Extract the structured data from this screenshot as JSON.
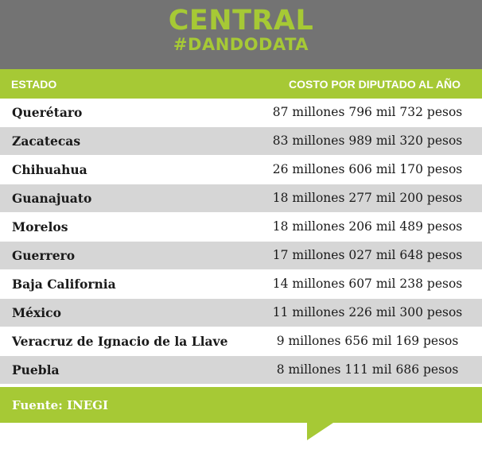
{
  "brand": {
    "line1": "CENTRAL",
    "line2": "#DANDODATA",
    "accent_color": "#a6c935",
    "header_bg": "#737373"
  },
  "table": {
    "headers": {
      "estado": "ESTADO",
      "costo": "COSTO POR DIPUTADO AL AÑO"
    },
    "rows": [
      {
        "estado": "Querétaro",
        "costo": "87 millones 796 mil 732 pesos"
      },
      {
        "estado": "Zacatecas",
        "costo": "83 millones 989 mil 320 pesos"
      },
      {
        "estado": "Chihuahua",
        "costo": "26 millones 606 mil 170 pesos"
      },
      {
        "estado": "Guanajuato",
        "costo": "18 millones 277 mil 200 pesos"
      },
      {
        "estado": "Morelos",
        "costo": "18 millones 206 mil 489 pesos"
      },
      {
        "estado": "Guerrero",
        "costo": "17 millones 027 mil 648 pesos"
      },
      {
        "estado": "Baja California",
        "costo": "14 millones 607 mil 238 pesos"
      },
      {
        "estado": "México",
        "costo": "11 millones 226 mil 300 pesos"
      },
      {
        "estado": "Veracruz de Ignacio de la Llave",
        "costo": "9 millones 656 mil 169 pesos"
      },
      {
        "estado": "Puebla",
        "costo": "8 millones 111 mil 686 pesos"
      }
    ]
  },
  "footer": {
    "source": "Fuente: INEGI"
  }
}
